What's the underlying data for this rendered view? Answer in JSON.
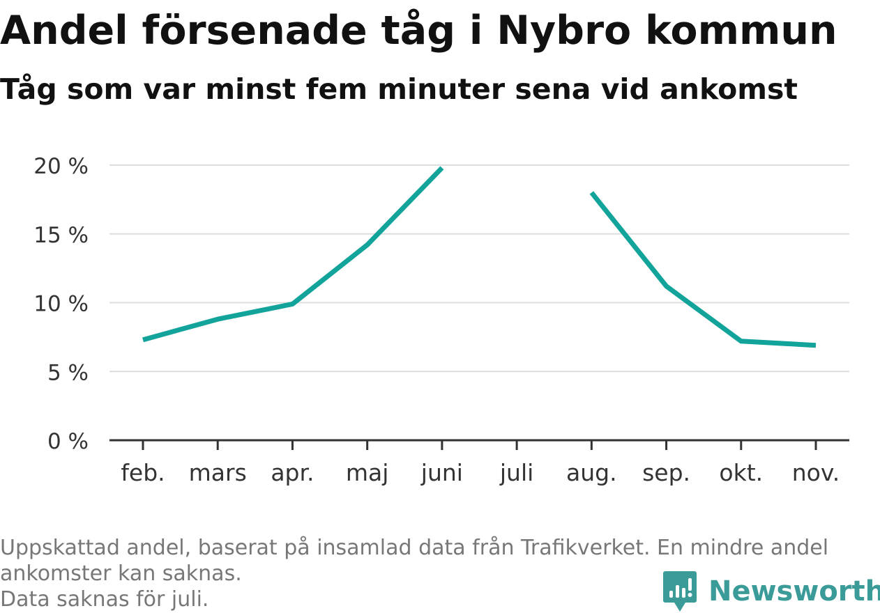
{
  "header": {
    "title": "Andel försenade tåg i Nybro kommun",
    "subtitle": "Tåg som var minst fem minuter sena vid ankomst"
  },
  "chart_data": {
    "type": "line",
    "title": "Andel försenade tåg i Nybro kommun",
    "subtitle": "Tåg som var minst fem minuter sena vid ankomst",
    "categories": [
      "feb.",
      "mars",
      "apr.",
      "maj",
      "juni",
      "juli",
      "aug.",
      "sep.",
      "okt.",
      "nov."
    ],
    "series": [
      {
        "values": [
          7.3,
          8.8,
          9.9,
          14.2,
          19.8,
          null,
          18.0,
          11.2,
          7.2,
          6.9
        ]
      }
    ],
    "ylim": [
      0,
      20
    ],
    "yticks": [
      0,
      5,
      10,
      15,
      20
    ],
    "ytick_labels": [
      "0 %",
      "5 %",
      "10 %",
      "15 %",
      "20 %"
    ],
    "xlabel": "",
    "ylabel": "",
    "grid": true,
    "line_color": "#12a39a"
  },
  "footer": {
    "note_line1": "Uppskattad andel, baserat på insamlad data från Trafikverket. En mindre andel",
    "note_line2": "ankomster kan saknas.",
    "note_line3": "Data saknas för juli.",
    "brand": "Newsworthy",
    "brand_icon": "newsworthy-logo-icon",
    "brand_color": "#3a9b98"
  }
}
